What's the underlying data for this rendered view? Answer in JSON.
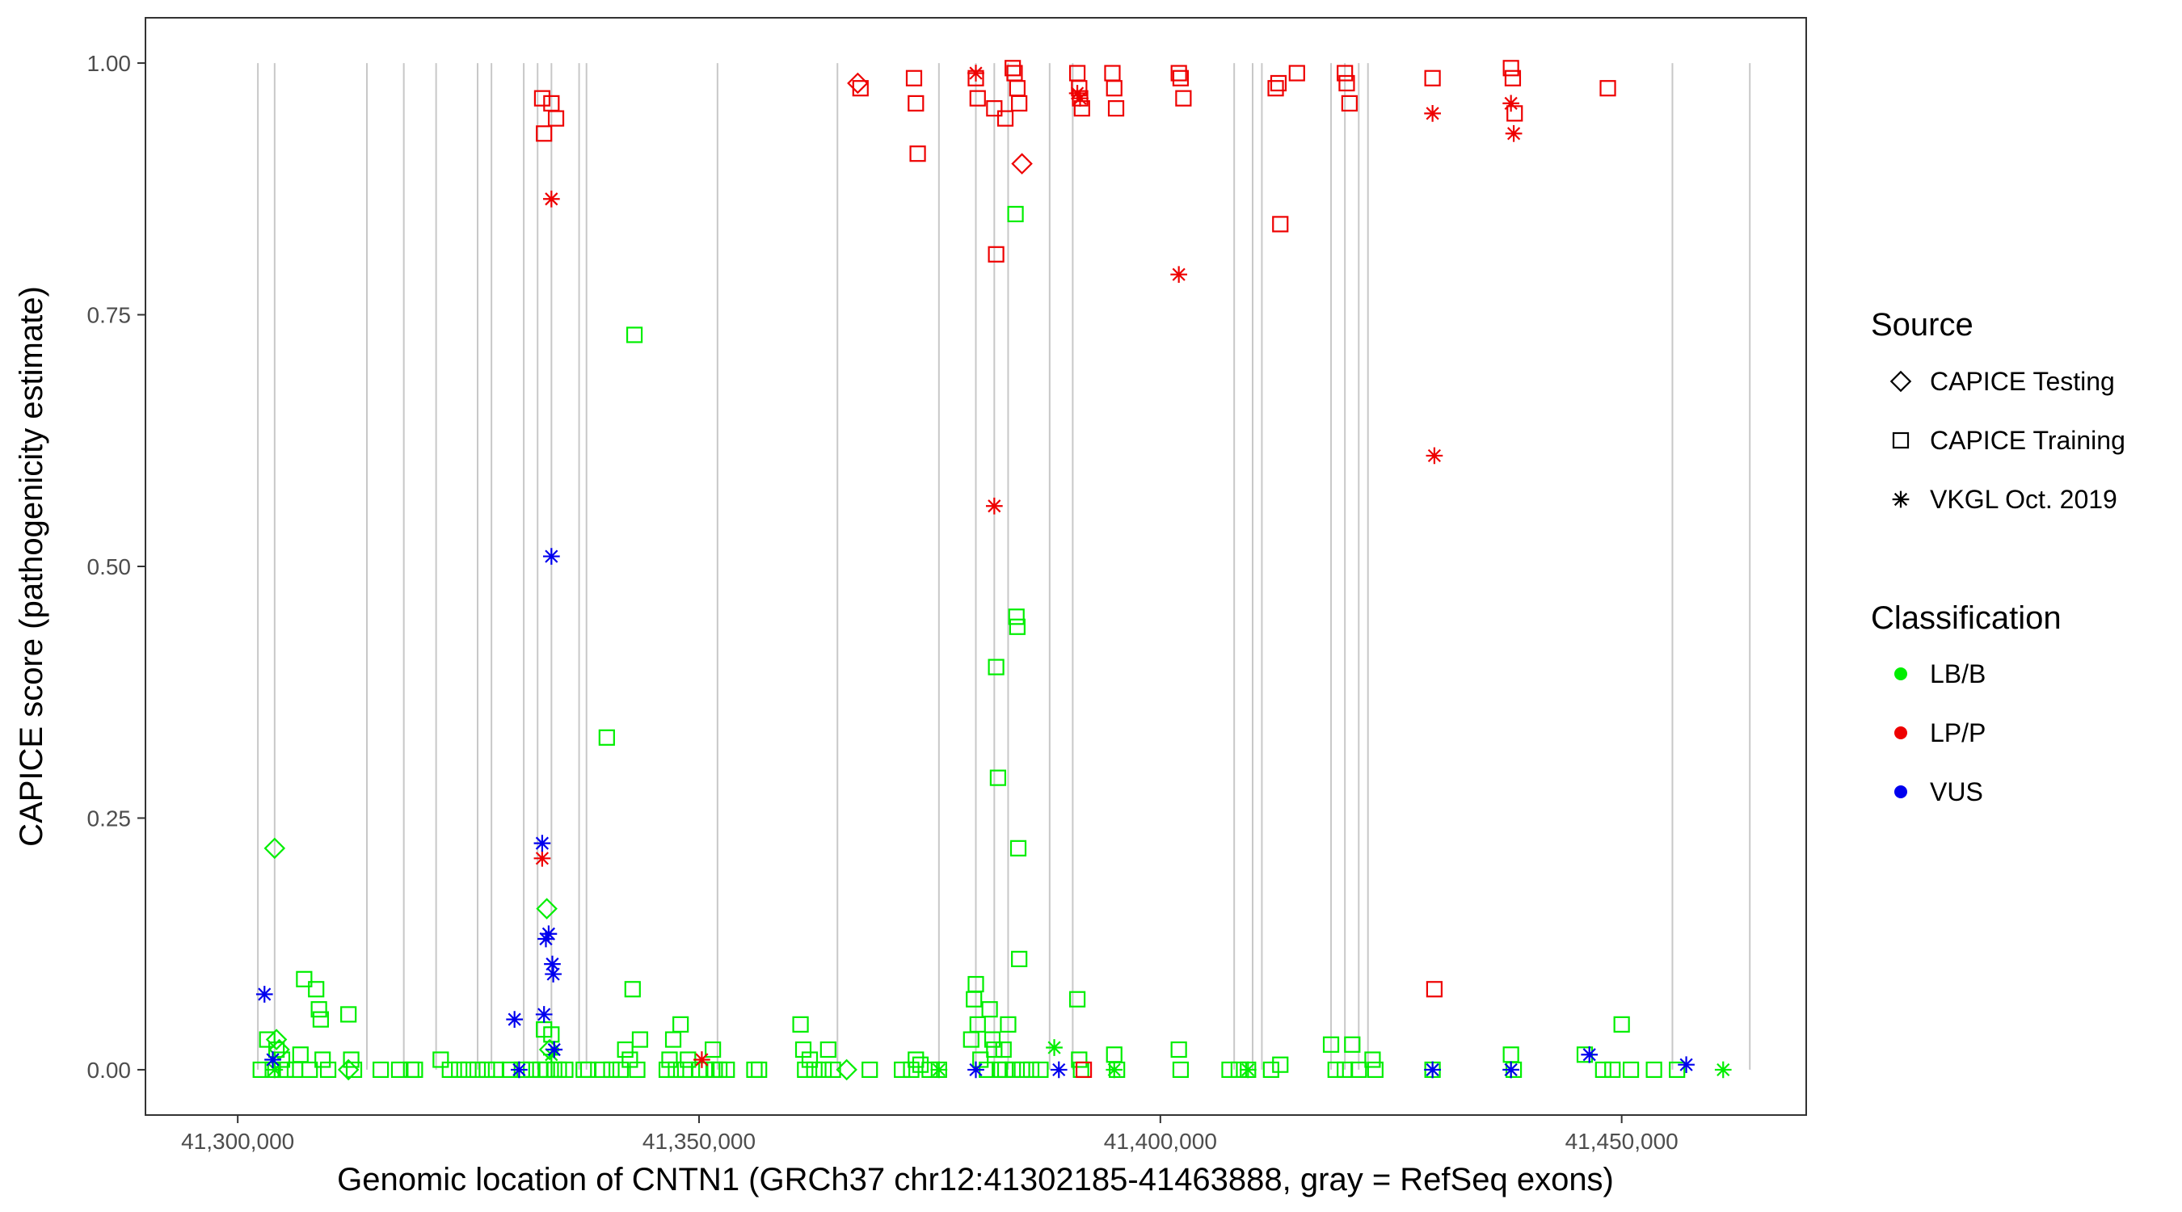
{
  "chart_data": {
    "type": "scatter",
    "title": "",
    "xlabel": "Genomic location of CNTN1 (GRCh37 chr12:41302185-41463888, gray = RefSeq exons)",
    "ylabel": "CAPICE score (pathogenicity estimate)",
    "xlim": [
      41290000,
      41470000
    ],
    "ylim": [
      -0.045,
      1.045
    ],
    "x_ticks": [
      {
        "value": 41300000,
        "label": "41,300,000"
      },
      {
        "value": 41350000,
        "label": "41,350,000"
      },
      {
        "value": 41400000,
        "label": "41,400,000"
      },
      {
        "value": 41450000,
        "label": "41,450,000"
      }
    ],
    "y_ticks": [
      {
        "value": 0.0,
        "label": "0.00"
      },
      {
        "value": 0.25,
        "label": "0.25"
      },
      {
        "value": 0.5,
        "label": "0.50"
      },
      {
        "value": 0.75,
        "label": "0.75"
      },
      {
        "value": 1.0,
        "label": "1.00"
      }
    ],
    "grid": false,
    "exons_x": [
      41302185,
      41304000,
      41314000,
      41318000,
      41321500,
      41326000,
      41327500,
      41331000,
      41332500,
      41334000,
      41337000,
      41337800,
      41352000,
      41365000,
      41376000,
      41380000,
      41382000,
      41383500,
      41388000,
      41390500,
      41408000,
      41410000,
      41411000,
      41418500,
      41420000,
      41421500,
      41422500,
      41455500,
      41463888
    ],
    "exon_color": "#c8c8c8",
    "legend": {
      "position": "right",
      "source_title": "Source",
      "source_items": [
        {
          "label": "CAPICE Testing",
          "shape": "diamond"
        },
        {
          "label": "CAPICE Training",
          "shape": "square"
        },
        {
          "label": "VKGL Oct. 2019",
          "shape": "asterisk"
        }
      ],
      "class_title": "Classification",
      "class_items": [
        {
          "label": "LB/B",
          "color": "#00ee00"
        },
        {
          "label": "LP/P",
          "color": "#ee0000"
        },
        {
          "label": "VUS",
          "color": "#0000ee"
        }
      ]
    },
    "series": [
      {
        "name": "CAPICE Training / LB/B",
        "shape": "square",
        "color": "#00ee00",
        "points": [
          [
            41302500,
            0.0
          ],
          [
            41303200,
            0.03
          ],
          [
            41303800,
            0.0
          ],
          [
            41304200,
            0.02
          ],
          [
            41304800,
            0.01
          ],
          [
            41305200,
            0.0
          ],
          [
            41306200,
            0.0
          ],
          [
            41306800,
            0.015
          ],
          [
            41307200,
            0.09
          ],
          [
            41307800,
            0.0
          ],
          [
            41308500,
            0.08
          ],
          [
            41308800,
            0.06
          ],
          [
            41309000,
            0.05
          ],
          [
            41309200,
            0.01
          ],
          [
            41309800,
            0.0
          ],
          [
            41312000,
            0.055
          ],
          [
            41312300,
            0.01
          ],
          [
            41312600,
            0.0
          ],
          [
            41315500,
            0.0
          ],
          [
            41317500,
            0.0
          ],
          [
            41318800,
            0.0
          ],
          [
            41319200,
            0.0
          ],
          [
            41322000,
            0.01
          ],
          [
            41323000,
            0.0
          ],
          [
            41324000,
            0.0
          ],
          [
            41325000,
            0.0
          ],
          [
            41326000,
            0.0
          ],
          [
            41327000,
            0.0
          ],
          [
            41328000,
            0.0
          ],
          [
            41329500,
            0.0
          ],
          [
            41330800,
            0.0
          ],
          [
            41331800,
            0.0
          ],
          [
            41332800,
            0.0
          ],
          [
            41333200,
            0.04
          ],
          [
            41333500,
            0.0
          ],
          [
            41334000,
            0.035
          ],
          [
            41334300,
            0.0
          ],
          [
            41334800,
            0.0
          ],
          [
            41335500,
            0.0
          ],
          [
            41337500,
            0.0
          ],
          [
            41338000,
            0.0
          ],
          [
            41339500,
            0.0
          ],
          [
            41340000,
            0.33
          ],
          [
            41340500,
            0.0
          ],
          [
            41341500,
            0.0
          ],
          [
            41342000,
            0.02
          ],
          [
            41342500,
            0.01
          ],
          [
            41342800,
            0.08
          ],
          [
            41343000,
            0.73
          ],
          [
            41343300,
            0.0
          ],
          [
            41343600,
            0.03
          ],
          [
            41346500,
            0.0
          ],
          [
            41346800,
            0.01
          ],
          [
            41347200,
            0.03
          ],
          [
            41347500,
            0.0
          ],
          [
            41348000,
            0.045
          ],
          [
            41348500,
            0.0
          ],
          [
            41348800,
            0.01
          ],
          [
            41350000,
            0.0
          ],
          [
            41350800,
            0.0
          ],
          [
            41351500,
            0.02
          ],
          [
            41351700,
            0.0
          ],
          [
            41352200,
            0.0
          ],
          [
            41353000,
            0.0
          ],
          [
            41356000,
            0.0
          ],
          [
            41356500,
            0.0
          ],
          [
            41361000,
            0.045
          ],
          [
            41361300,
            0.02
          ],
          [
            41361500,
            0.0
          ],
          [
            41362000,
            0.01
          ],
          [
            41362500,
            0.0
          ],
          [
            41363500,
            0.0
          ],
          [
            41364000,
            0.02
          ],
          [
            41364500,
            0.0
          ],
          [
            41368500,
            0.0
          ],
          [
            41372000,
            0.0
          ],
          [
            41373000,
            0.0
          ],
          [
            41373500,
            0.01
          ],
          [
            41374000,
            0.005
          ],
          [
            41375000,
            0.0
          ],
          [
            41376000,
            0.0
          ],
          [
            41379500,
            0.03
          ],
          [
            41379800,
            0.07
          ],
          [
            41380000,
            0.085
          ],
          [
            41380200,
            0.045
          ],
          [
            41380500,
            0.01
          ],
          [
            41381200,
            0.0
          ],
          [
            41381500,
            0.06
          ],
          [
            41381800,
            0.03
          ],
          [
            41382000,
            0.02
          ],
          [
            41382200,
            0.4
          ],
          [
            41382400,
            0.29
          ],
          [
            41382600,
            0.0
          ],
          [
            41383000,
            0.02
          ],
          [
            41383200,
            0.0
          ],
          [
            41383500,
            0.045
          ],
          [
            41384000,
            0.0
          ],
          [
            41384300,
            0.85
          ],
          [
            41384400,
            0.45
          ],
          [
            41384500,
            0.44
          ],
          [
            41384600,
            0.22
          ],
          [
            41384700,
            0.11
          ],
          [
            41385000,
            0.0
          ],
          [
            41386000,
            0.0
          ],
          [
            41387000,
            0.0
          ],
          [
            41391000,
            0.07
          ],
          [
            41391200,
            0.01
          ],
          [
            41391400,
            0.0
          ],
          [
            41395000,
            0.015
          ],
          [
            41395300,
            0.0
          ],
          [
            41402000,
            0.02
          ],
          [
            41402200,
            0.0
          ],
          [
            41407500,
            0.0
          ],
          [
            41408500,
            0.0
          ],
          [
            41409500,
            0.0
          ],
          [
            41412000,
            0.0
          ],
          [
            41413000,
            0.005
          ],
          [
            41418500,
            0.025
          ],
          [
            41419000,
            0.0
          ],
          [
            41420000,
            0.0
          ],
          [
            41420800,
            0.025
          ],
          [
            41421500,
            0.0
          ],
          [
            41423000,
            0.01
          ],
          [
            41423300,
            0.0
          ],
          [
            41429500,
            0.0
          ],
          [
            41438000,
            0.015
          ],
          [
            41438300,
            0.0
          ],
          [
            41446000,
            0.015
          ],
          [
            41448000,
            0.0
          ],
          [
            41449000,
            0.0
          ],
          [
            41450000,
            0.045
          ],
          [
            41451000,
            0.0
          ],
          [
            41453500,
            0.0
          ],
          [
            41456000,
            0.0
          ]
        ]
      },
      {
        "name": "CAPICE Training / LP/P",
        "shape": "square",
        "color": "#ee0000",
        "points": [
          [
            41333000,
            0.965
          ],
          [
            41333200,
            0.93
          ],
          [
            41334000,
            0.96
          ],
          [
            41334500,
            0.945
          ],
          [
            41367500,
            0.975
          ],
          [
            41373300,
            0.985
          ],
          [
            41373500,
            0.96
          ],
          [
            41373700,
            0.91
          ],
          [
            41380000,
            0.985
          ],
          [
            41380200,
            0.965
          ],
          [
            41382000,
            0.955
          ],
          [
            41382200,
            0.81
          ],
          [
            41383200,
            0.945
          ],
          [
            41384000,
            0.995
          ],
          [
            41384200,
            0.99
          ],
          [
            41384500,
            0.975
          ],
          [
            41384700,
            0.96
          ],
          [
            41391000,
            0.99
          ],
          [
            41391200,
            0.975
          ],
          [
            41391300,
            0.965
          ],
          [
            41391500,
            0.955
          ],
          [
            41391700,
            0.0
          ],
          [
            41394800,
            0.99
          ],
          [
            41395000,
            0.975
          ],
          [
            41395200,
            0.955
          ],
          [
            41402000,
            0.99
          ],
          [
            41402200,
            0.985
          ],
          [
            41402500,
            0.965
          ],
          [
            41412500,
            0.975
          ],
          [
            41412800,
            0.98
          ],
          [
            41413000,
            0.84
          ],
          [
            41414800,
            0.99
          ],
          [
            41420000,
            0.99
          ],
          [
            41420200,
            0.98
          ],
          [
            41420500,
            0.96
          ],
          [
            41429500,
            0.985
          ],
          [
            41429700,
            0.08
          ],
          [
            41438000,
            0.995
          ],
          [
            41438200,
            0.985
          ],
          [
            41438400,
            0.95
          ],
          [
            41448500,
            0.975
          ]
        ]
      },
      {
        "name": "CAPICE Testing / LB/B",
        "shape": "diamond",
        "color": "#00ee00",
        "points": [
          [
            41304000,
            0.22
          ],
          [
            41304200,
            0.03
          ],
          [
            41304500,
            0.02
          ],
          [
            41312000,
            0.0
          ],
          [
            41333500,
            0.16
          ],
          [
            41333800,
            0.02
          ],
          [
            41366000,
            0.0
          ]
        ]
      },
      {
        "name": "CAPICE Testing / LP/P",
        "shape": "diamond",
        "color": "#ee0000",
        "points": [
          [
            41367200,
            0.98
          ],
          [
            41385000,
            0.9
          ]
        ]
      },
      {
        "name": "VKGL Oct. 2019 / LB/B",
        "shape": "asterisk",
        "color": "#00ee00",
        "points": [
          [
            41304000,
            0.0
          ],
          [
            41334000,
            0.015
          ],
          [
            41376000,
            0.0
          ],
          [
            41388500,
            0.022
          ],
          [
            41395000,
            0.0
          ],
          [
            41409500,
            0.0
          ],
          [
            41429500,
            0.0
          ],
          [
            41438000,
            0.0
          ],
          [
            41461000,
            0.0
          ]
        ]
      },
      {
        "name": "VKGL Oct. 2019 / LP/P",
        "shape": "asterisk",
        "color": "#ee0000",
        "points": [
          [
            41333000,
            0.21
          ],
          [
            41334000,
            0.865
          ],
          [
            41350300,
            0.01
          ],
          [
            41380000,
            0.99
          ],
          [
            41382000,
            0.56
          ],
          [
            41391000,
            0.97
          ],
          [
            41391300,
            0.965
          ],
          [
            41402000,
            0.79
          ],
          [
            41429500,
            0.95
          ],
          [
            41429700,
            0.61
          ],
          [
            41438000,
            0.96
          ],
          [
            41438300,
            0.93
          ]
        ]
      },
      {
        "name": "VKGL Oct. 2019 / VUS",
        "shape": "asterisk",
        "color": "#0000ee",
        "points": [
          [
            41302900,
            0.075
          ],
          [
            41303800,
            0.01
          ],
          [
            41330000,
            0.05
          ],
          [
            41330500,
            0.0
          ],
          [
            41333000,
            0.225
          ],
          [
            41333200,
            0.055
          ],
          [
            41333400,
            0.13
          ],
          [
            41333700,
            0.135
          ],
          [
            41334000,
            0.51
          ],
          [
            41334100,
            0.105
          ],
          [
            41334200,
            0.095
          ],
          [
            41334300,
            0.02
          ],
          [
            41380000,
            0.0
          ],
          [
            41389000,
            0.0
          ],
          [
            41429500,
            0.0
          ],
          [
            41438000,
            0.0
          ],
          [
            41446500,
            0.015
          ],
          [
            41457000,
            0.005
          ]
        ]
      }
    ]
  }
}
